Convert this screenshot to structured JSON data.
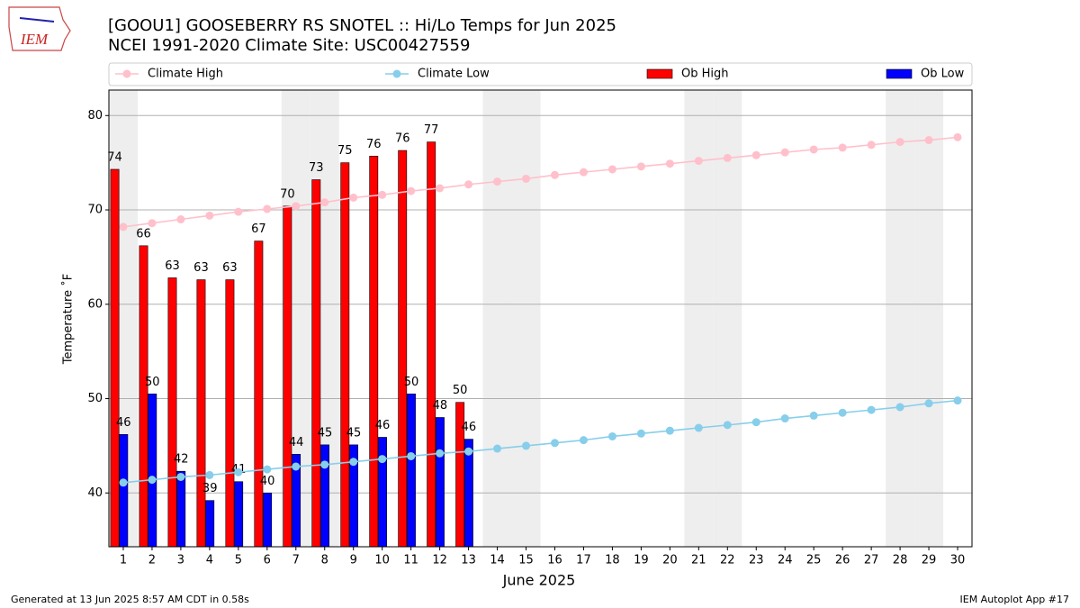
{
  "chart_data": {
    "type": "bar",
    "title": "[GOOU1] GOOSEBERRY RS SNOTEL :: Hi/Lo Temps for Jun 2025",
    "subtitle": "NCEI 1991-2020 Climate Site: USC00427559",
    "x_label": "June 2025",
    "y_label": "Temperature ˚F",
    "x": [
      1,
      2,
      3,
      4,
      5,
      6,
      7,
      8,
      9,
      10,
      11,
      12,
      13,
      14,
      15,
      16,
      17,
      18,
      19,
      20,
      21,
      22,
      23,
      24,
      25,
      26,
      27,
      28,
      29,
      30
    ],
    "xlim": [
      0.5,
      30.5
    ],
    "xticks": [
      1,
      2,
      3,
      4,
      5,
      6,
      7,
      8,
      9,
      10,
      11,
      12,
      13,
      14,
      15,
      16,
      17,
      18,
      19,
      20,
      21,
      22,
      23,
      24,
      25,
      26,
      27,
      28,
      29,
      30
    ],
    "ylim": [
      34.3,
      82.7
    ],
    "yticks": [
      40,
      50,
      60,
      70,
      80
    ],
    "grid": true,
    "shaded_days": [
      1,
      7,
      8,
      14,
      15,
      21,
      22,
      28,
      29
    ],
    "series": [
      {
        "name": "Climate High",
        "type": "line",
        "color": "#ffc0cb",
        "values": [
          68.2,
          68.6,
          69.0,
          69.4,
          69.8,
          70.1,
          70.4,
          70.8,
          71.3,
          71.6,
          72.0,
          72.3,
          72.7,
          73.0,
          73.3,
          73.7,
          74.0,
          74.3,
          74.6,
          74.9,
          75.2,
          75.5,
          75.8,
          76.1,
          76.4,
          76.6,
          76.9,
          77.2,
          77.4,
          77.7
        ]
      },
      {
        "name": "Climate Low",
        "type": "line",
        "color": "#87ceeb",
        "values": [
          41.1,
          41.4,
          41.7,
          41.9,
          42.2,
          42.5,
          42.8,
          43.0,
          43.3,
          43.6,
          43.9,
          44.2,
          44.4,
          44.7,
          45.0,
          45.3,
          45.6,
          46.0,
          46.3,
          46.6,
          46.9,
          47.2,
          47.5,
          47.9,
          48.2,
          48.5,
          48.8,
          49.1,
          49.5,
          49.8
        ]
      },
      {
        "name": "Ob High",
        "type": "bar",
        "color": "#ff0000",
        "values": [
          74.3,
          66.2,
          62.8,
          62.6,
          62.6,
          66.7,
          70.4,
          73.2,
          75.0,
          75.7,
          76.3,
          77.2,
          49.6,
          null,
          null,
          null,
          null,
          null,
          null,
          null,
          null,
          null,
          null,
          null,
          null,
          null,
          null,
          null,
          null,
          null
        ],
        "value_labels": [
          "74",
          "66",
          "63",
          "63",
          "63",
          "67",
          "70",
          "73",
          "75",
          "76",
          "76",
          "77",
          "50",
          null,
          null,
          null,
          null,
          null,
          null,
          null,
          null,
          null,
          null,
          null,
          null,
          null,
          null,
          null,
          null,
          null
        ]
      },
      {
        "name": "Ob Low",
        "type": "bar",
        "color": "#0000ff",
        "values": [
          46.2,
          50.5,
          42.3,
          39.2,
          41.2,
          40.0,
          44.1,
          45.1,
          45.1,
          45.9,
          50.5,
          48.0,
          45.7,
          null,
          null,
          null,
          null,
          null,
          null,
          null,
          null,
          null,
          null,
          null,
          null,
          null,
          null,
          null,
          null,
          null
        ],
        "value_labels": [
          "46",
          "50",
          "42",
          "39",
          "41",
          "40",
          "44",
          "45",
          "45",
          "46",
          "50",
          "48",
          "46",
          null,
          null,
          null,
          null,
          null,
          null,
          null,
          null,
          null,
          null,
          null,
          null,
          null,
          null,
          null,
          null,
          null
        ]
      }
    ]
  },
  "logo": "IEM",
  "footer_left": "Generated at 13 Jun 2025 8:57 AM CDT in 0.58s",
  "footer_right": "IEM Autoplot App #17"
}
